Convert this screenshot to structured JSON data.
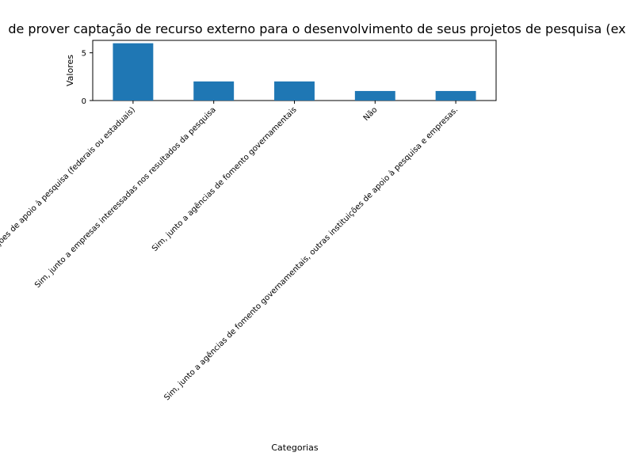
{
  "chart_data": {
    "type": "bar",
    "title": "de prover captação de recurso externo para o desenvolvimento de seus projetos de pesquisa (ex",
    "xlabel": "Categorias",
    "ylabel": "Valores",
    "categories": [
      "Sim, junto a outras instituições de apoio à pesquisa (federais ou estaduais)",
      "Sim, junto a empresas interessadas nos resultados da pesquisa",
      "Sim, junto a agências de fomento governamentais",
      "Não",
      "Sim, junto a agências de fomento governamentais, outras instituições de apoio à pesquisa e empresas."
    ],
    "values": [
      6,
      2,
      2,
      1,
      1
    ],
    "ylim": [
      0,
      6.3
    ],
    "yticks": [
      0,
      5
    ],
    "bar_color": "#1f77b4",
    "grid": false,
    "legend": "none"
  }
}
